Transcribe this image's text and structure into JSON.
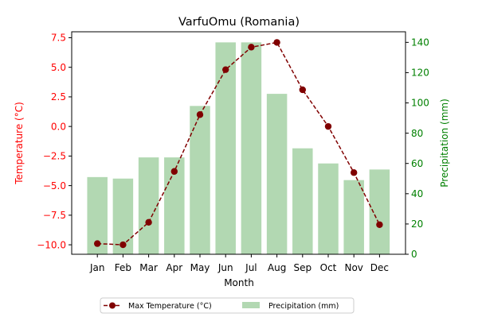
{
  "chart_data": {
    "type": "bar+line",
    "title": "VarfuOmu (Romania)",
    "xlabel": "Month",
    "categories": [
      "Jan",
      "Feb",
      "Mar",
      "Apr",
      "May",
      "Jun",
      "Jul",
      "Aug",
      "Sep",
      "Oct",
      "Nov",
      "Dec"
    ],
    "left_axis": {
      "label": "Temperature (°C)",
      "color": "#ff0000",
      "ylim": [
        -10.8,
        8.0
      ],
      "ticks": [
        -10.0,
        -7.5,
        -5.0,
        -2.5,
        0.0,
        2.5,
        5.0,
        7.5
      ],
      "tick_labels": [
        "−10.0",
        "−7.5",
        "−5.0",
        "−2.5",
        "0.0",
        "2.5",
        "5.0",
        "7.5"
      ]
    },
    "right_axis": {
      "label": "Precipitation (mm)",
      "color": "#008000",
      "ylim": [
        0,
        147
      ],
      "ticks": [
        0,
        20,
        40,
        60,
        80,
        100,
        120,
        140
      ],
      "tick_labels": [
        "0",
        "20",
        "40",
        "60",
        "80",
        "100",
        "120",
        "140"
      ]
    },
    "series": [
      {
        "name": "Max Temperature (°C)",
        "type": "line",
        "axis": "left",
        "color": "#800000",
        "values": [
          -9.9,
          -10.0,
          -8.1,
          -3.8,
          1.0,
          4.8,
          6.7,
          7.1,
          3.1,
          0.0,
          -3.9,
          -8.3
        ]
      },
      {
        "name": "Precipitation (mm)",
        "type": "bar",
        "axis": "right",
        "color": "#b2d8b2",
        "values": [
          51,
          50,
          64,
          64,
          98,
          140,
          140,
          106,
          70,
          60,
          49,
          56
        ]
      }
    ],
    "legend": {
      "placement": "bottom-center"
    },
    "grid": false
  }
}
